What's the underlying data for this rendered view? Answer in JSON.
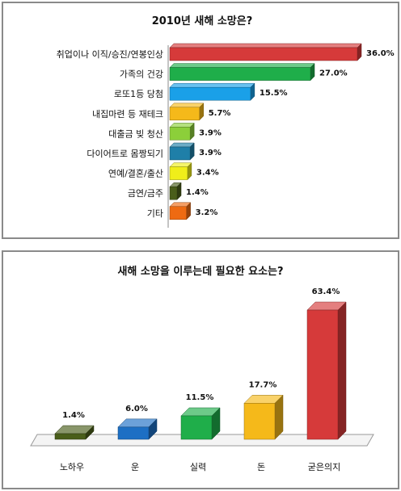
{
  "chart_data": [
    {
      "type": "bar",
      "orientation": "horizontal",
      "title": "2010년 새해 소망은?",
      "categories": [
        "취업이나 이직/승진/연봉인상",
        "가족의 건강",
        "로또1등 당첨",
        "내집마련 등 재테크",
        "대출금 빚 청산",
        "다이어트로 몸짱되기",
        "연예/결혼/출산",
        "금연/금주",
        "기타"
      ],
      "values": [
        36.0,
        27.0,
        15.5,
        5.7,
        3.9,
        3.9,
        3.4,
        1.4,
        3.2
      ],
      "value_labels": [
        "36.0%",
        "27.0%",
        "15.5%",
        "5.7%",
        "3.9%",
        "3.9%",
        "3.4%",
        "1.4%",
        "3.2%"
      ],
      "colors": [
        "#d63a3a",
        "#1fae4a",
        "#1aa0e8",
        "#f5b91a",
        "#8ccf3a",
        "#1f7fa8",
        "#f0ee1a",
        "#4a5e1a",
        "#ee6a12"
      ],
      "xlim": [
        0,
        36.0
      ],
      "xlabel": "",
      "ylabel": ""
    },
    {
      "type": "bar",
      "orientation": "vertical",
      "title": "새해 소망을 이루는데 필요한 요소는?",
      "categories": [
        "노하우",
        "운",
        "실력",
        "돈",
        "굳은의지"
      ],
      "values": [
        1.4,
        6.0,
        11.5,
        17.7,
        63.4
      ],
      "value_labels": [
        "1.4%",
        "6.0%",
        "11.5%",
        "17.7%",
        "63.4%"
      ],
      "colors": [
        "#4a5e1a",
        "#1d6fc4",
        "#1fae4a",
        "#f5b91a",
        "#d63a3a"
      ],
      "ylim": [
        0,
        63.4
      ],
      "xlabel": "",
      "ylabel": ""
    }
  ]
}
